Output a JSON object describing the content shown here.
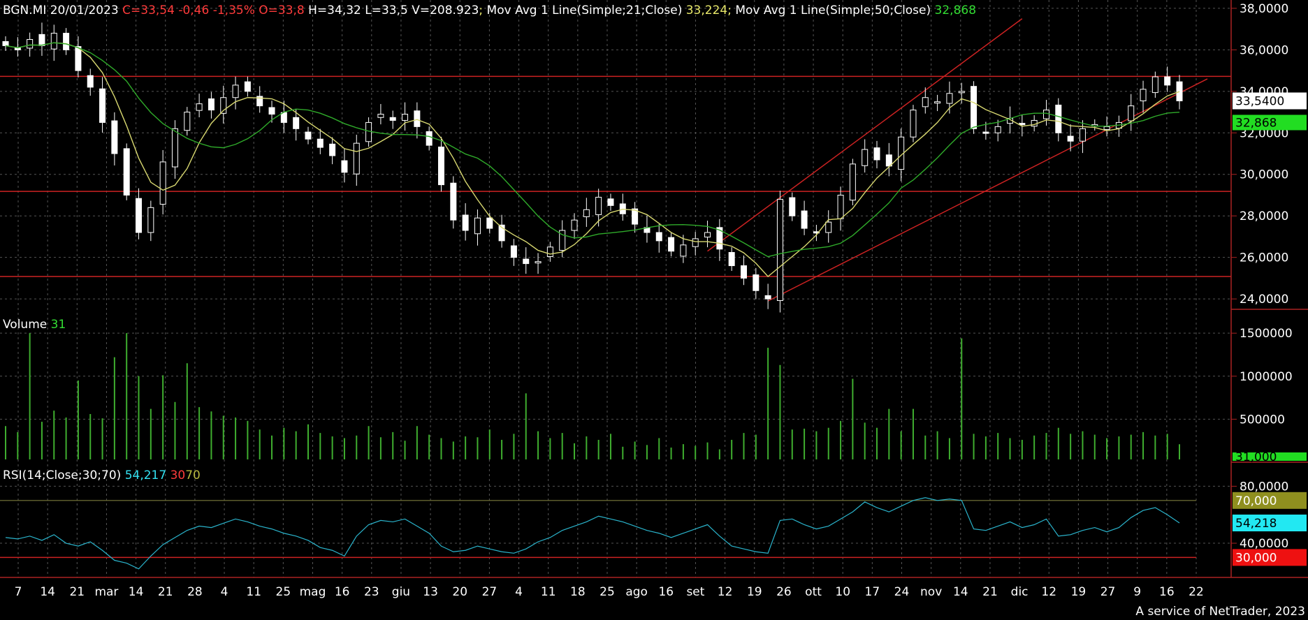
{
  "header": {
    "symbol_date": "BGN.MI 20/01/2023",
    "quote": "C=33,54 -0,46 -1,35% O=33,8",
    "hl": "H=34,32 L=33,5 V=208.923",
    "sep1": ";",
    "ma21_label": " Mov Avg 1 Line(Simple;21;Close)",
    "ma21_value": "33,224",
    "sep2": ";",
    "ma50_label": " Mov Avg 1 Line(Simple;50;Close)",
    "ma50_value": "32,868"
  },
  "volume_label": {
    "name": "Volume",
    "value": "31"
  },
  "rsi_label": {
    "name": "RSI(14;Close;30;70)",
    "value": "54,217",
    "low": "30",
    "high": "70"
  },
  "footer": "A service of NetTrader, 2023",
  "colors": {
    "background": "#000000",
    "text": "#ffffff",
    "red": "#ff3b3b",
    "ma21": "#d8d870",
    "ma50": "#2faa2a",
    "volume": "#3fae2f",
    "rsi": "#2ab4cc",
    "grid": "#555555",
    "channel": "#cc2222"
  },
  "chart_data": {
    "type": "candlestick",
    "price": {
      "ylim": [
        23.5,
        38.4
      ],
      "yticks": [
        "38,0000",
        "36,0000",
        "34,0000",
        "32,0000",
        "30,0000",
        "28,0000",
        "26,0000",
        "24,0000"
      ],
      "horizontal_lines": [
        34.72,
        29.18,
        25.08
      ],
      "last_price_label": "33,5400",
      "ma50_label": "32,868",
      "close_path": [
        36.2,
        36.0,
        36.5,
        36.2,
        36.8,
        36.0,
        35.0,
        34.2,
        32.5,
        31.0,
        29.0,
        27.2,
        28.4,
        30.6,
        32.2,
        33.0,
        33.4,
        33.1,
        33.7,
        34.3,
        34.0,
        33.3,
        32.9,
        32.5,
        32.2,
        31.7,
        31.3,
        30.9,
        30.1,
        31.5,
        32.5,
        32.9,
        32.6,
        32.9,
        32.3,
        31.4,
        29.5,
        27.8,
        27.3,
        27.9,
        27.4,
        26.8,
        26.0,
        25.7,
        25.8,
        26.5,
        27.3,
        27.8,
        28.3,
        28.9,
        28.5,
        28.1,
        27.6,
        27.2,
        26.8,
        26.3,
        26.6,
        26.9,
        27.2,
        26.4,
        25.6,
        25.0,
        24.4,
        24.0,
        28.8,
        28.0,
        27.4,
        27.2,
        27.7,
        29.0,
        30.5,
        31.2,
        30.7,
        30.4,
        31.8,
        33.1,
        33.7,
        33.5,
        33.9,
        34.0,
        32.2,
        32.0,
        32.3,
        32.7,
        32.4,
        32.6,
        33.1,
        32.0,
        31.6,
        32.2,
        32.4,
        32.3,
        32.5,
        33.3,
        34.1,
        34.7,
        34.3,
        33.54
      ]
    },
    "volume": {
      "ylim": [
        0,
        1680000
      ],
      "yticks": [
        "1500000",
        "1000000",
        "500000"
      ],
      "last_label": "31,000",
      "values": [
        420000,
        350000,
        540000,
        470000,
        600000,
        520000,
        820000,
        560000,
        510000,
        610000,
        1500000,
        1000000,
        620000,
        1010000,
        700000,
        1150000,
        640000,
        590000,
        540000,
        520000,
        480000,
        380000,
        310000,
        400000,
        360000,
        440000,
        340000,
        300000,
        280000,
        310000,
        420000,
        290000,
        350000,
        250000,
        420000,
        320000,
        280000,
        240000,
        300000,
        290000,
        380000,
        260000,
        330000,
        310000,
        360000,
        280000,
        340000,
        220000,
        300000,
        260000,
        330000,
        180000,
        240000,
        200000,
        280000,
        170000,
        210000,
        190000,
        230000,
        150000,
        260000,
        340000,
        320000,
        280000,
        300000,
        380000,
        390000,
        360000,
        400000,
        480000,
        310000,
        460000,
        400000,
        620000,
        360000,
        290000,
        310000,
        360000,
        280000,
        410000,
        330000,
        300000,
        340000,
        280000,
        260000,
        310000,
        340000,
        400000,
        330000,
        360000,
        320000,
        280000,
        300000,
        320000,
        350000,
        310000,
        330000,
        208923
      ],
      "spikes": [
        [
          2,
          1500000
        ],
        [
          9,
          1220000
        ],
        [
          63,
          1330000
        ],
        [
          64,
          1130000
        ],
        [
          70,
          970000
        ],
        [
          75,
          620000
        ],
        [
          79,
          1440000
        ],
        [
          43,
          800000
        ],
        [
          6,
          950000
        ]
      ]
    },
    "rsi": {
      "ylim": [
        16,
        90
      ],
      "yticks": [
        "80,0000",
        "40,0000"
      ],
      "levels": [
        70,
        30
      ],
      "badges": [
        "70,000",
        "54,218",
        "30,000"
      ],
      "values": [
        44,
        43,
        45,
        42,
        46,
        40,
        38,
        41,
        35,
        28,
        26,
        22,
        31,
        39,
        44,
        49,
        52,
        51,
        54,
        57,
        55,
        52,
        50,
        47,
        45,
        42,
        37,
        35,
        31,
        45,
        53,
        56,
        55,
        57,
        52,
        47,
        38,
        34,
        35,
        38,
        36,
        34,
        33,
        36,
        41,
        44,
        49,
        52,
        55,
        59,
        57,
        55,
        52,
        49,
        47,
        44,
        47,
        50,
        53,
        45,
        38,
        36,
        34,
        33,
        56,
        57,
        53,
        50,
        52,
        57,
        62,
        69,
        65,
        62,
        66,
        70,
        72,
        70,
        71,
        70,
        50,
        49,
        52,
        55,
        51,
        53,
        57,
        45,
        46,
        49,
        51,
        48,
        51,
        58,
        63,
        65,
        60,
        54.2
      ]
    },
    "x_axis": {
      "ticks": [
        "7",
        "14",
        "21",
        "mar",
        "14",
        "21",
        "28",
        "4",
        "11",
        "25",
        "mag",
        "16",
        "23",
        "giu",
        "13",
        "20",
        "27",
        "4",
        "11",
        "18",
        "25",
        "ago",
        "16",
        "set",
        "12",
        "19",
        "26",
        "ott",
        "10",
        "17",
        "24",
        "nov",
        "14",
        "21",
        "dic",
        "12",
        "19",
        "27",
        "9",
        "16",
        "22"
      ]
    }
  }
}
